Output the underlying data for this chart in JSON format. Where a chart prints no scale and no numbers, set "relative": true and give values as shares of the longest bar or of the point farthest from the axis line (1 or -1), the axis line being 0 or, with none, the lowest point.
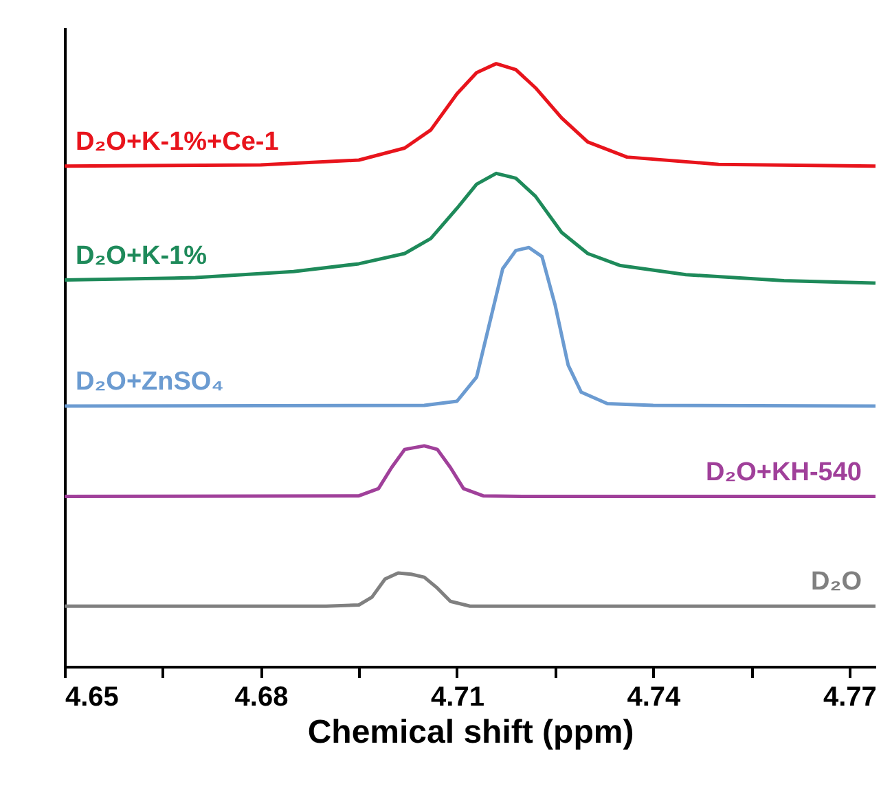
{
  "chart_data": {
    "type": "line",
    "relative": true,
    "xlabel": "Chemical shift (ppm)",
    "xlim": [
      4.65,
      4.774
    ],
    "xticks": [
      4.65,
      {
        "value": 4.665,
        "label": null
      },
      4.68,
      {
        "value": 4.695,
        "label": null
      },
      4.71,
      {
        "value": 4.725,
        "label": null
      },
      4.74,
      {
        "value": 4.755,
        "label": null
      },
      4.77
    ],
    "marker": "none",
    "line_style": "solid",
    "series": [
      {
        "name": "D₂O+K-1%+Ce-1",
        "color": "#e8141c",
        "x": [
          4.65,
          4.68,
          4.695,
          4.702,
          4.706,
          4.71,
          4.713,
          4.716,
          4.719,
          4.722,
          4.726,
          4.73,
          4.736,
          4.75,
          4.774
        ],
        "values": [
          0.83,
          0.832,
          0.84,
          0.86,
          0.89,
          0.95,
          0.985,
          1.0,
          0.99,
          0.96,
          0.91,
          0.87,
          0.845,
          0.833,
          0.83
        ]
      },
      {
        "name": "D₂O+K-1%",
        "color": "#1e8a5a",
        "x": [
          4.65,
          4.67,
          4.685,
          4.695,
          4.702,
          4.706,
          4.71,
          4.713,
          4.716,
          4.719,
          4.722,
          4.726,
          4.73,
          4.735,
          4.745,
          4.76,
          4.774
        ],
        "values": [
          0.641,
          0.645,
          0.655,
          0.668,
          0.685,
          0.71,
          0.76,
          0.8,
          0.818,
          0.81,
          0.78,
          0.72,
          0.685,
          0.665,
          0.65,
          0.64,
          0.636
        ]
      },
      {
        "name": "D₂O+ZnSO₄",
        "color": "#6b9bd1",
        "x": [
          4.65,
          4.705,
          4.71,
          4.713,
          4.715,
          4.717,
          4.719,
          4.721,
          4.723,
          4.725,
          4.727,
          4.729,
          4.733,
          4.74,
          4.774
        ],
        "values": [
          0.432,
          0.433,
          0.44,
          0.48,
          0.57,
          0.66,
          0.69,
          0.695,
          0.68,
          0.6,
          0.5,
          0.455,
          0.436,
          0.433,
          0.432
        ]
      },
      {
        "name": "D₂O+KH-540",
        "color": "#a0409a",
        "x": [
          4.65,
          4.695,
          4.698,
          4.7,
          4.702,
          4.705,
          4.707,
          4.709,
          4.711,
          4.714,
          4.72,
          4.774
        ],
        "values": [
          0.282,
          0.283,
          0.295,
          0.33,
          0.36,
          0.366,
          0.36,
          0.33,
          0.295,
          0.283,
          0.282,
          0.282
        ]
      },
      {
        "name": "D₂O",
        "color": "#808080",
        "x": [
          4.65,
          4.69,
          4.695,
          4.697,
          4.699,
          4.701,
          4.703,
          4.705,
          4.707,
          4.709,
          4.712,
          4.774
        ],
        "values": [
          0.1,
          0.1,
          0.102,
          0.115,
          0.145,
          0.155,
          0.153,
          0.148,
          0.13,
          0.108,
          0.1,
          0.1
        ]
      }
    ]
  }
}
